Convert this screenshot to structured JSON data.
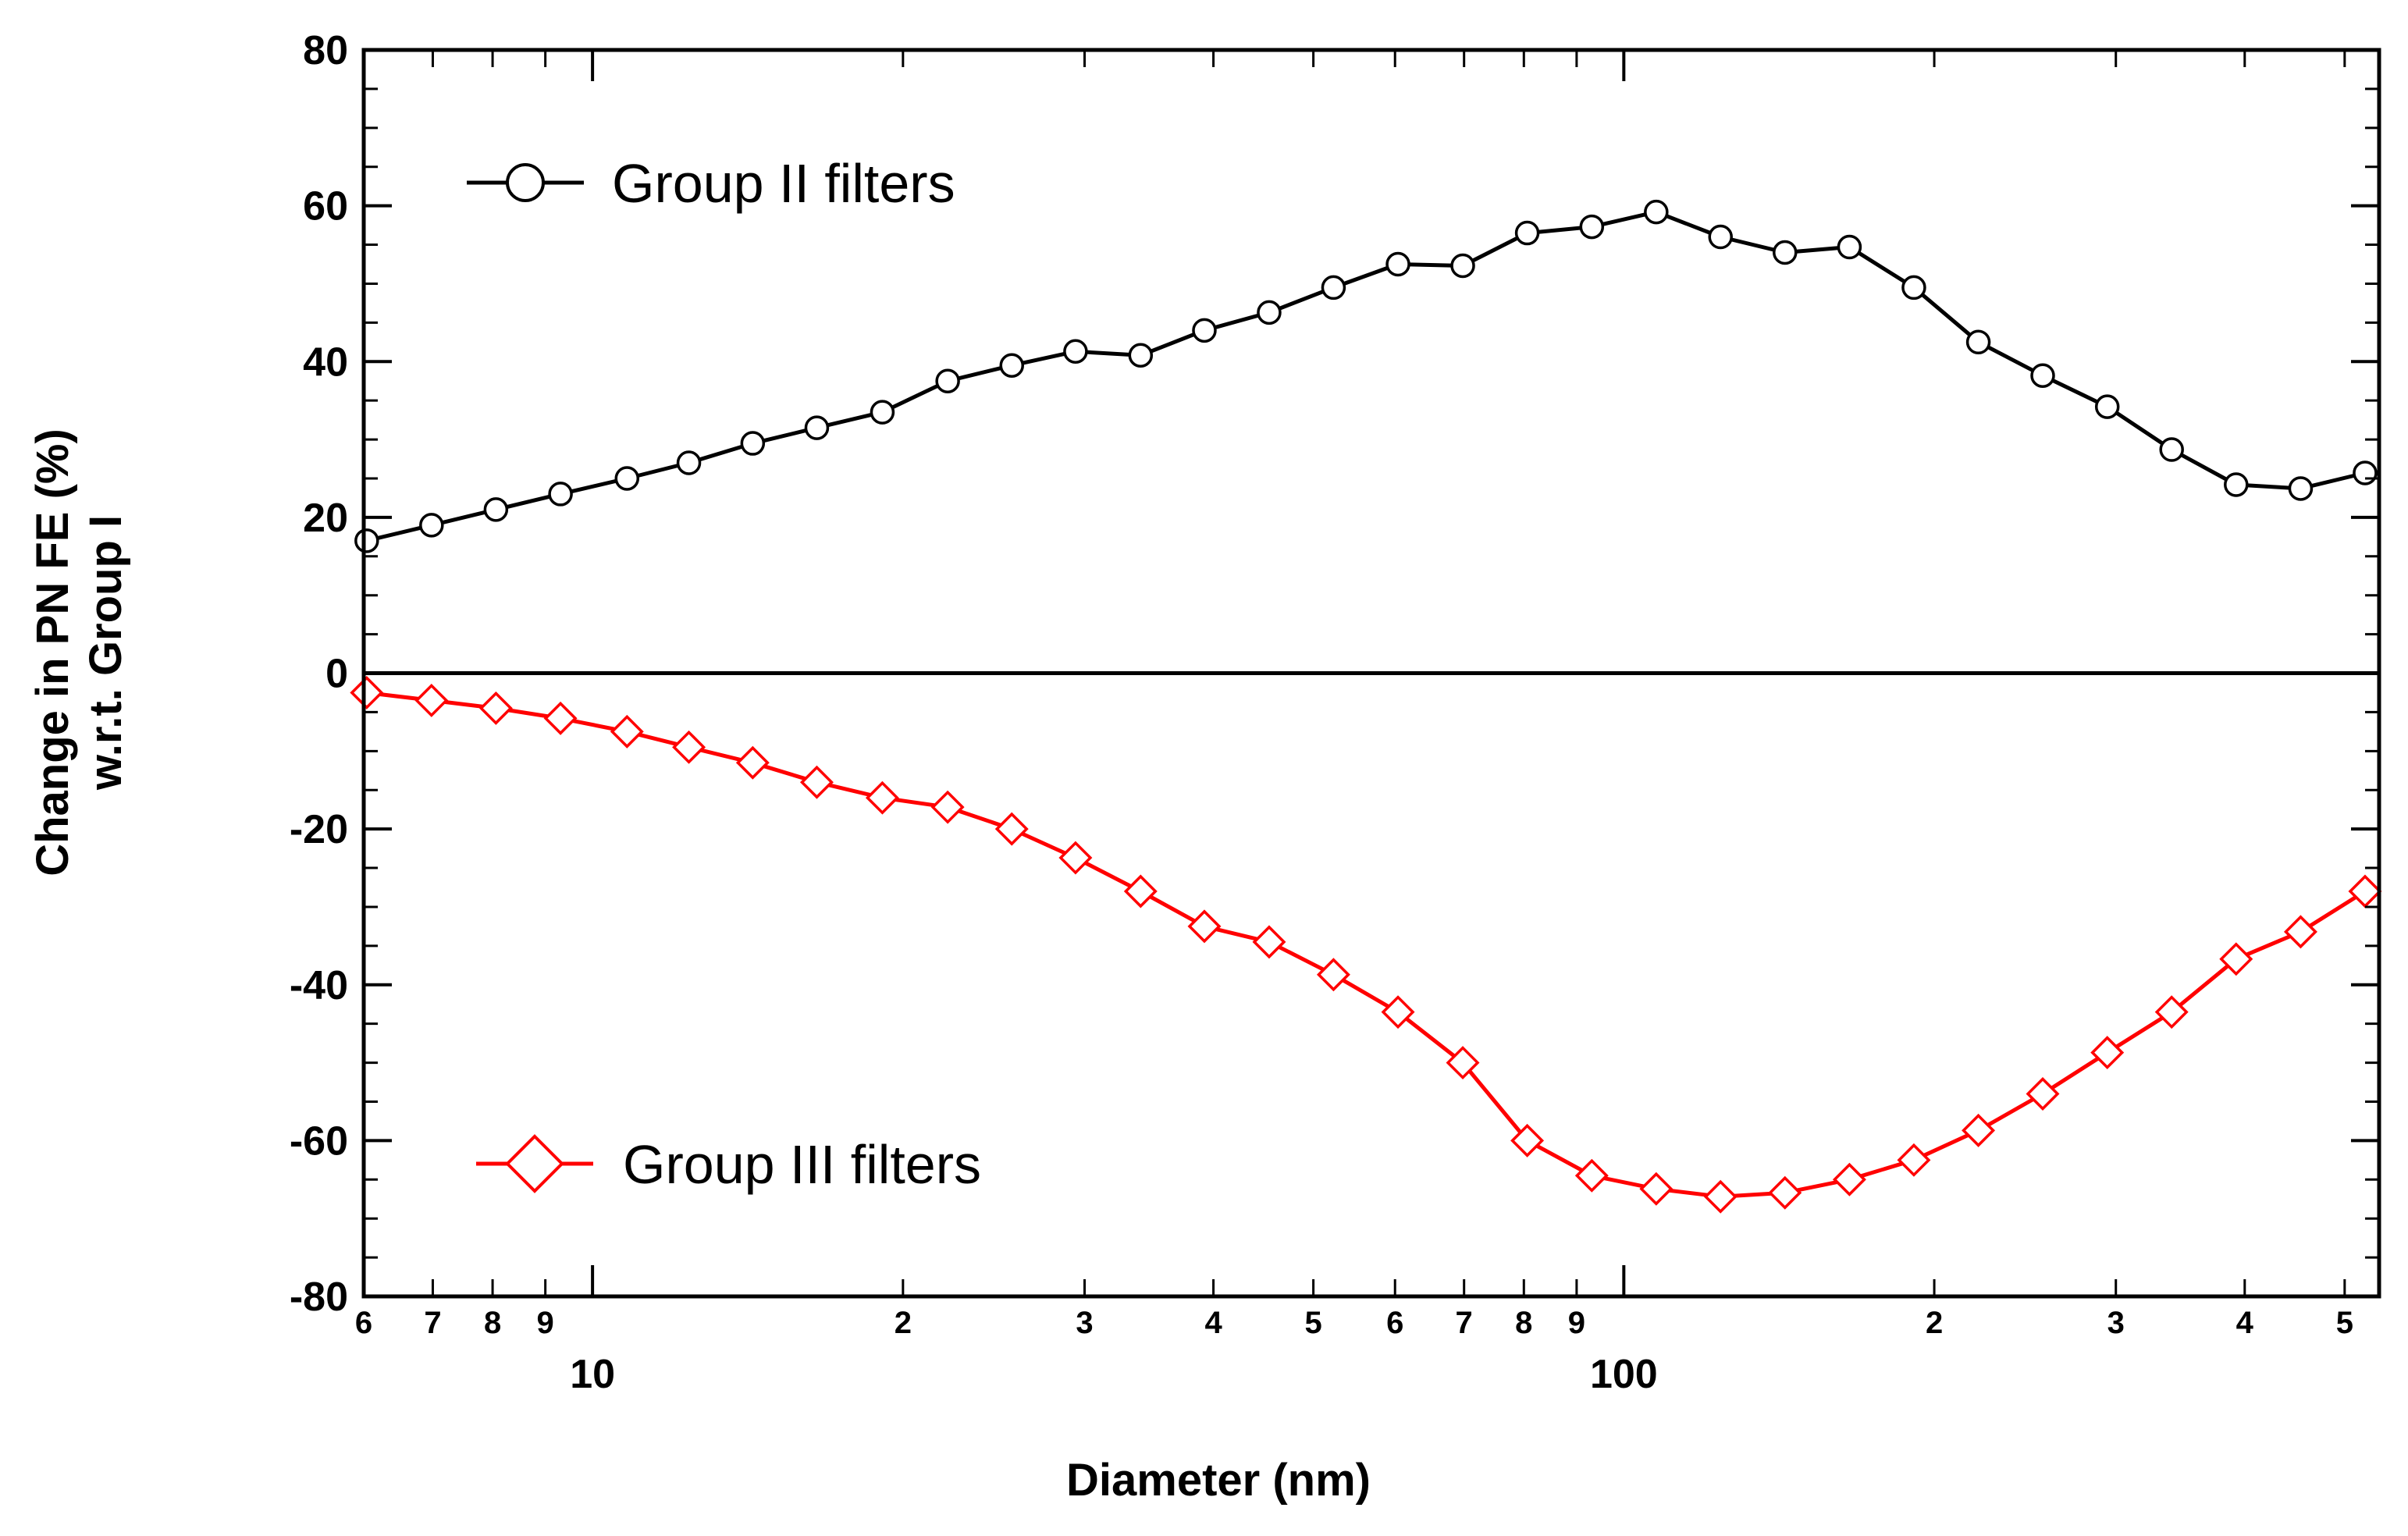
{
  "chart_data": {
    "type": "line",
    "title": "",
    "xlabel": "Diameter (nm)",
    "ylabel_line1": "Change in PN FE (%)",
    "ylabel_line2": "w.r.t. Group I",
    "x_scale": "log",
    "xlim": [
      6,
      540
    ],
    "ylim": [
      -80,
      80
    ],
    "y_ticks": [
      80,
      60,
      40,
      20,
      0,
      -20,
      -40,
      -60,
      -80
    ],
    "y_tick_labels": [
      "80",
      "60",
      "40",
      "20",
      "0",
      "-20",
      "-40",
      "-60",
      "-80"
    ],
    "x_minor_ticks": [
      6,
      7,
      8,
      9,
      20,
      30,
      40,
      50,
      60,
      70,
      80,
      90,
      200,
      300,
      400,
      500
    ],
    "x_minor_tick_labels": [
      "6",
      "7",
      "8",
      "9",
      "2",
      "3",
      "4",
      "5",
      "6",
      "7",
      "8",
      "9",
      "2",
      "3",
      "4",
      "5"
    ],
    "x_major_ticks": [
      10,
      100
    ],
    "x_major_tick_labels": [
      "10",
      "100"
    ],
    "zero_line": true,
    "x": [
      6.04,
      6.98,
      8.06,
      9.31,
      10.8,
      12.4,
      14.3,
      16.5,
      19.1,
      22.1,
      25.5,
      29.4,
      34.0,
      39.2,
      45.3,
      52.3,
      60.4,
      69.8,
      80.6,
      93.1,
      107.5,
      124.1,
      143.3,
      165.5,
      191.1,
      220.7,
      254.8,
      294.3,
      339.8,
      392.4,
      453.2,
      523.3
    ],
    "series": [
      {
        "name": "Group II filters",
        "color": "#000000",
        "marker": "circle",
        "values": [
          17.0,
          19.0,
          21.0,
          23.0,
          25.0,
          27.0,
          29.5,
          31.5,
          33.5,
          37.5,
          39.5,
          41.3,
          40.8,
          44.0,
          46.3,
          49.5,
          52.5,
          52.3,
          56.5,
          57.3,
          59.2,
          56.0,
          54.0,
          54.7,
          49.5,
          42.5,
          38.2,
          34.2,
          28.7,
          24.2,
          23.7,
          25.7
        ]
      },
      {
        "name": "Group III filters",
        "color": "#ff0000",
        "marker": "diamond",
        "values": [
          -2.5,
          -3.5,
          -4.5,
          -5.8,
          -7.5,
          -9.5,
          -11.5,
          -14.0,
          -16.0,
          -17.2,
          -20.0,
          -23.7,
          -28.0,
          -32.5,
          -34.5,
          -38.7,
          -43.5,
          -50.0,
          -60.0,
          -64.5,
          -66.2,
          -67.2,
          -66.7,
          -65.0,
          -62.5,
          -58.7,
          -54.0,
          -48.7,
          -43.5,
          -36.7,
          -33.2,
          -28.0
        ]
      }
    ]
  }
}
